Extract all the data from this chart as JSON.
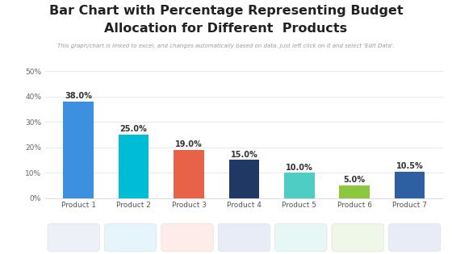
{
  "title_line1": "Bar Chart with Percentage Representing Budget",
  "title_line2": "Allocation for Different  Products",
  "subtitle": "This graph/chart is linked to excel, and changes automatically based on data. Just left click on it and select 'Edit Data'.",
  "categories": [
    "Product 1",
    "Product 2",
    "Product 3",
    "Product 4",
    "Product 5",
    "Product 6",
    "Product 7"
  ],
  "values": [
    38.0,
    25.0,
    19.0,
    15.0,
    10.0,
    5.0,
    10.5
  ],
  "bar_colors": [
    "#3d90e0",
    "#00bcd4",
    "#e8624a",
    "#1f3864",
    "#4ecdc4",
    "#8dc63f",
    "#2e5fa3"
  ],
  "labels": [
    "38.0%",
    "25.0%",
    "19.0%",
    "15.0%",
    "10.0%",
    "5.0%",
    "10.5%"
  ],
  "ylim": [
    0,
    50
  ],
  "yticks": [
    0,
    10,
    20,
    30,
    40,
    50
  ],
  "ytick_labels": [
    "0%",
    "10%",
    "20%",
    "30%",
    "40%",
    "50%"
  ],
  "background_color": "#ffffff",
  "plot_bg_color": "#ffffff",
  "title_fontsize": 11.5,
  "subtitle_fontsize": 5.0,
  "label_fontsize": 7.0,
  "tick_fontsize": 6.5,
  "bar_width": 0.55,
  "icon_bg_colors": [
    "#eef0f8",
    "#e6f4fb",
    "#fdecea",
    "#e8ecf6",
    "#e6f7f6",
    "#eef7e8",
    "#e8ecf6"
  ]
}
